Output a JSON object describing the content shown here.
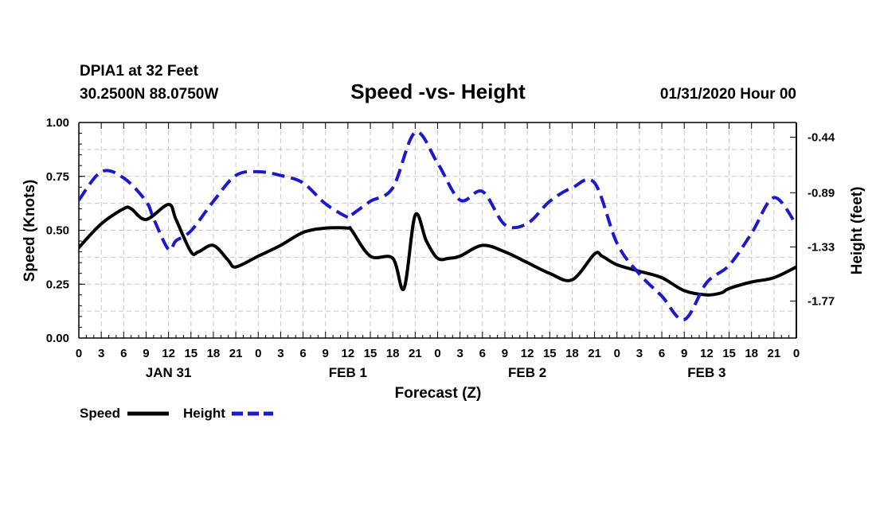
{
  "header": {
    "station": "DPIA1 at 32 Feet",
    "coordinates": "30.2500N 88.0750W",
    "title": "Speed -vs- Height",
    "issued": "01/31/2020 Hour 00"
  },
  "legend": {
    "speed_label": "Speed",
    "height_label": "Height"
  },
  "chart_data": {
    "type": "line",
    "title": "Speed -vs- Height",
    "xlabel": "Forecast (Z)",
    "ylabel": "Speed (Knots)",
    "y2label": "Height (feet)",
    "x_unit": "forecast hour",
    "xlim": [
      0,
      96
    ],
    "ylim": [
      0,
      1.0
    ],
    "y2lim": [
      -2.07,
      -0.32
    ],
    "grid": true,
    "legend_position": "bottom-left",
    "x_ticks": [
      0,
      3,
      6,
      9,
      12,
      15,
      18,
      21,
      24,
      27,
      30,
      33,
      36,
      39,
      42,
      45,
      48,
      51,
      54,
      57,
      60,
      63,
      66,
      69,
      72,
      75,
      78,
      81,
      84,
      87,
      90,
      93,
      96
    ],
    "x_tick_labels": [
      "0",
      "3",
      "6",
      "9",
      "12",
      "15",
      "18",
      "21",
      "0",
      "3",
      "6",
      "9",
      "12",
      "15",
      "18",
      "21",
      "0",
      "3",
      "6",
      "9",
      "12",
      "15",
      "18",
      "21",
      "0",
      "3",
      "6",
      "9",
      "12",
      "15",
      "18",
      "21",
      "0"
    ],
    "day_labels": [
      {
        "label": "JAN 31",
        "hour": 12
      },
      {
        "label": "FEB 1",
        "hour": 36
      },
      {
        "label": "FEB 2",
        "hour": 60
      },
      {
        "label": "FEB 3",
        "hour": 84
      }
    ],
    "y_ticks": [
      0.0,
      0.25,
      0.5,
      0.75,
      1.0
    ],
    "y_tick_labels": [
      "0.00",
      "0.25",
      "0.50",
      "0.75",
      "1.00"
    ],
    "y2_ticks": [
      -0.44,
      -0.89,
      -1.33,
      -1.77
    ],
    "y2_tick_labels": [
      "-0.44",
      "-0.89",
      "-1.33",
      "-1.77"
    ],
    "series": [
      {
        "name": "Speed",
        "axis": "left",
        "color": "#000000",
        "dash": "solid",
        "x": [
          0,
          3,
          6,
          7,
          9,
          12,
          13,
          15,
          16,
          18,
          20,
          21,
          24,
          27,
          30,
          33,
          36,
          36.5,
          39,
          42,
          43.5,
          45,
          46.5,
          48,
          49.5,
          51,
          54,
          57,
          60,
          63,
          66,
          69,
          70,
          72,
          75,
          78,
          81,
          84,
          86,
          87,
          90,
          93,
          96
        ],
        "values": [
          0.42,
          0.53,
          0.6,
          0.6,
          0.55,
          0.62,
          0.55,
          0.4,
          0.4,
          0.43,
          0.36,
          0.33,
          0.38,
          0.43,
          0.49,
          0.51,
          0.51,
          0.5,
          0.38,
          0.37,
          0.23,
          0.57,
          0.45,
          0.37,
          0.37,
          0.38,
          0.43,
          0.4,
          0.35,
          0.3,
          0.27,
          0.39,
          0.38,
          0.34,
          0.31,
          0.28,
          0.22,
          0.2,
          0.21,
          0.23,
          0.26,
          0.28,
          0.33
        ]
      },
      {
        "name": "Height",
        "axis": "right",
        "color": "#1a1acc",
        "dash": "dashed",
        "x": [
          0,
          3,
          6,
          9,
          10,
          12,
          13,
          15,
          18,
          21,
          24,
          27,
          30,
          33,
          36,
          36.5,
          39,
          42,
          45,
          48,
          51,
          54,
          57,
          60,
          63,
          66,
          69,
          72,
          75,
          78,
          81,
          84,
          87,
          90,
          93,
          96
        ],
        "values": [
          -0.95,
          -0.72,
          -0.77,
          -0.96,
          -1.1,
          -1.35,
          -1.28,
          -1.2,
          -0.96,
          -0.75,
          -0.72,
          -0.75,
          -0.81,
          -0.98,
          -1.09,
          -1.07,
          -0.96,
          -0.85,
          -0.4,
          -0.65,
          -0.95,
          -0.88,
          -1.15,
          -1.14,
          -0.96,
          -0.85,
          -0.81,
          -1.3,
          -1.55,
          -1.73,
          -1.92,
          -1.62,
          -1.48,
          -1.22,
          -0.93,
          -1.15
        ]
      }
    ]
  }
}
